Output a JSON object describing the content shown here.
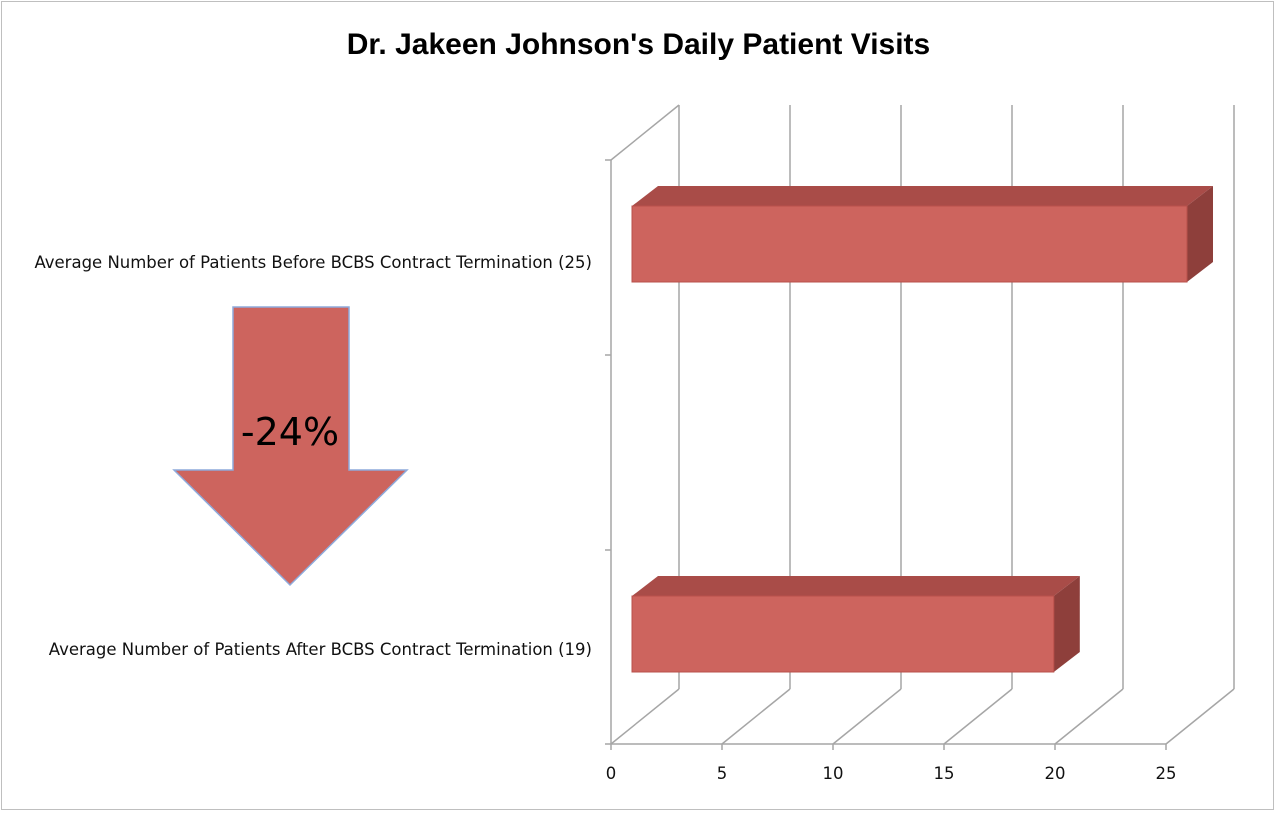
{
  "chart_data": {
    "type": "bar",
    "orientation": "horizontal",
    "style": "3d",
    "title": "Dr. Jakeen Johnson's Daily Patient Visits",
    "categories": [
      "Average Number of Patients Before BCBS Contract Termination (25)",
      "Average Number of Patients After BCBS Contract Termination (19)"
    ],
    "values": [
      25,
      19
    ],
    "xlim": [
      0,
      25
    ],
    "xticks": [
      "0",
      "5",
      "10",
      "15",
      "20",
      "25"
    ],
    "grid": true,
    "legend": "none",
    "bar_color": "#cd645e"
  },
  "annotation": {
    "label": "-24%",
    "shape": "down-arrow",
    "color": "#cd645e",
    "border_color": "#8eaadb"
  }
}
